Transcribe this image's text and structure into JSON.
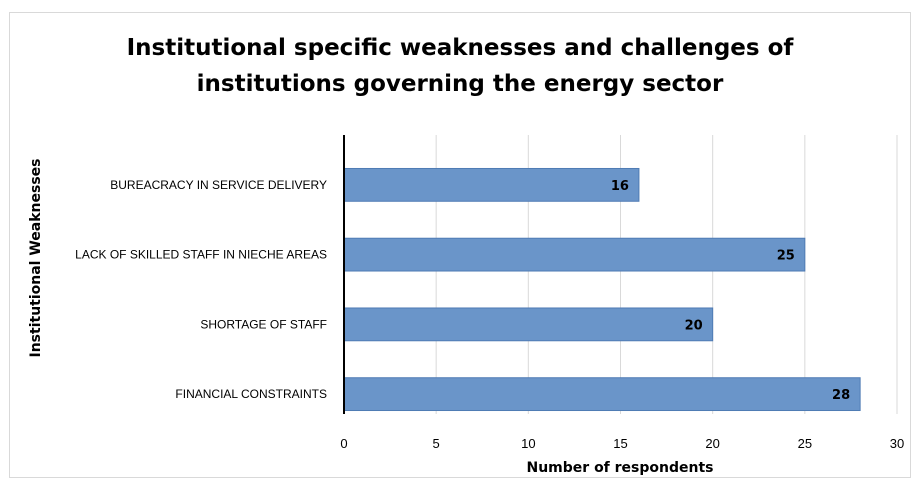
{
  "chart_data": {
    "type": "bar",
    "orientation": "horizontal",
    "title_lines": [
      "Institutional specific weaknesses and challenges of",
      "institutions governing the energy sector"
    ],
    "xlabel": "Number of respondents",
    "ylabel": "Institutional Weaknesses",
    "categories": [
      "BUREACRACY IN SERVICE DELIVERY",
      "LACK OF SKILLED STAFF IN NIECHE AREAS",
      "SHORTAGE OF STAFF",
      "FINANCIAL CONSTRAINTS"
    ],
    "values": [
      16,
      25,
      20,
      28
    ],
    "xlim": [
      0,
      30
    ],
    "xticks": [
      "0",
      "5",
      "10",
      "15",
      "20",
      "25",
      "30"
    ],
    "grid": "vertical",
    "bar_color": "#6a95c9",
    "data_labels": true
  }
}
